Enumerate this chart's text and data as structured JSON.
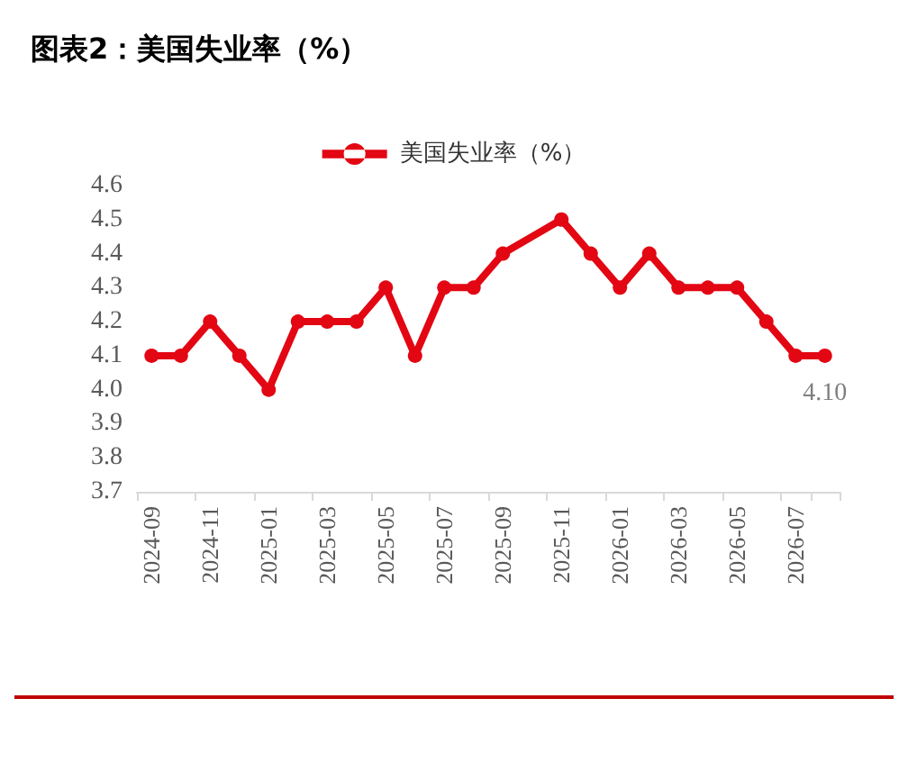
{
  "chart_data": {
    "type": "line",
    "title": "图表2：美国失业率（%）",
    "categories": [
      "2024-09",
      null,
      "2024-11",
      null,
      "2025-01",
      null,
      "2025-03",
      null,
      "2025-05",
      null,
      "2025-07",
      null,
      "2025-09",
      null,
      "2025-11",
      null,
      "2026-01",
      null,
      "2026-03",
      null,
      "2026-05",
      null,
      "2026-07",
      null
    ],
    "series": [
      {
        "name": "美国失业率（%）",
        "color": "#e30613",
        "values": [
          4.1,
          4.1,
          4.2,
          4.1,
          4.0,
          4.2,
          4.2,
          4.2,
          4.3,
          4.1,
          4.3,
          4.3,
          4.4,
          null,
          4.5,
          4.4,
          4.3,
          4.4,
          4.3,
          4.3,
          4.3,
          4.2,
          4.1,
          4.1
        ],
        "value_labels": [
          null,
          null,
          null,
          null,
          null,
          null,
          null,
          null,
          null,
          null,
          null,
          null,
          null,
          null,
          null,
          null,
          null,
          null,
          null,
          null,
          null,
          null,
          null,
          "4.10"
        ]
      }
    ],
    "ylim": [
      3.7,
      4.6
    ],
    "yticks": [
      3.7,
      3.8,
      3.9,
      {
        "value": 4,
        "label": "4.0"
      },
      4.1,
      4.2,
      4.3,
      4.4,
      4.5,
      4.6
    ],
    "grid": false,
    "legend": "top",
    "marker": "circle",
    "line_style": "solid"
  }
}
